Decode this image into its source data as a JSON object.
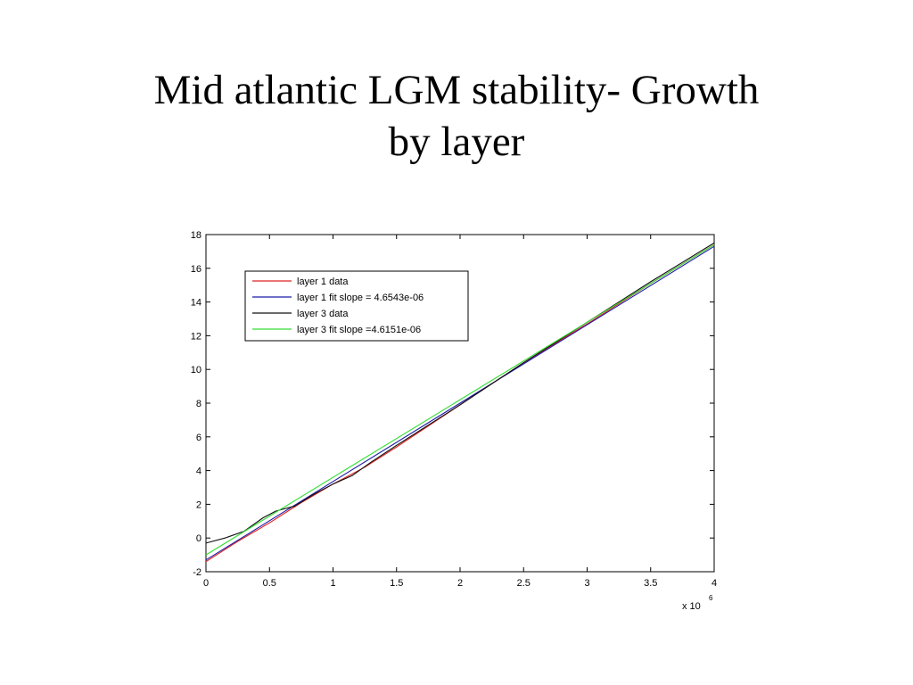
{
  "slide": {
    "title_line1": "Mid atlantic LGM stability- Growth",
    "title_line2": "by layer"
  },
  "chart_data": {
    "type": "line",
    "title": "",
    "xlabel": "",
    "ylabel": "",
    "x_multiplier_label": "x 10",
    "x_multiplier_exp": "6",
    "xlim": [
      0,
      4000000
    ],
    "ylim": [
      -2,
      18
    ],
    "xticks": [
      0,
      500000,
      1000000,
      1500000,
      2000000,
      2500000,
      3000000,
      3500000,
      4000000
    ],
    "xtick_labels": [
      "0",
      "0.5",
      "1",
      "1.5",
      "2",
      "2.5",
      "3",
      "3.5",
      "4"
    ],
    "yticks": [
      -2,
      0,
      2,
      4,
      6,
      8,
      10,
      12,
      14,
      16,
      18
    ],
    "ytick_labels": [
      "-2",
      "0",
      "2",
      "4",
      "6",
      "8",
      "10",
      "12",
      "14",
      "16",
      "18"
    ],
    "grid": false,
    "legend_position": "top-left",
    "series": [
      {
        "name": "layer 1 data",
        "color": "#e02020",
        "x": [
          0,
          250000,
          500000,
          750000,
          1000000,
          1250000,
          1500000,
          2000000,
          2500000,
          3000000,
          3500000,
          4000000
        ],
        "y": [
          -1.4,
          -0.2,
          0.9,
          2.1,
          3.2,
          4.2,
          5.4,
          7.9,
          10.4,
          12.7,
          15.1,
          17.4
        ]
      },
      {
        "name": "layer 1 fit slope = 4.6543e-06",
        "color": "#1a1aa8",
        "x": [
          0,
          4000000
        ],
        "y": [
          -1.3,
          17.3
        ]
      },
      {
        "name": "layer 3 data",
        "color": "#101010",
        "x": [
          0,
          150000,
          300000,
          450000,
          550000,
          700000,
          850000,
          1000000,
          1150000,
          1300000,
          1500000,
          2000000,
          2500000,
          3000000,
          3500000,
          4000000
        ],
        "y": [
          -0.3,
          0.0,
          0.4,
          1.2,
          1.6,
          1.9,
          2.6,
          3.2,
          3.7,
          4.5,
          5.5,
          7.9,
          10.4,
          12.8,
          15.2,
          17.5
        ]
      },
      {
        "name": "layer 3 fit slope =4.6151e-06",
        "color": "#33dd33",
        "x": [
          0,
          4000000
        ],
        "y": [
          -1.0,
          17.4
        ]
      }
    ]
  }
}
